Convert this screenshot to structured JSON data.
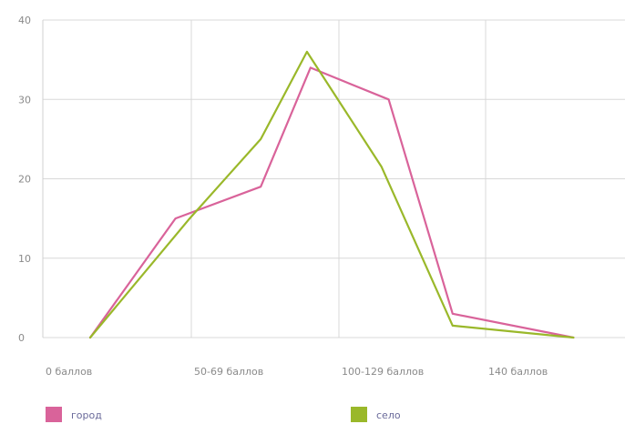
{
  "chart_data": {
    "type": "line",
    "title": "",
    "xlabel": "",
    "ylabel": "",
    "ylim": [
      0,
      40
    ],
    "yticks": [
      "0",
      "10",
      "20",
      "30",
      "40"
    ],
    "x_tick_labels": [
      "0 баллов",
      "50-69 баллов",
      "100-129 баллов",
      "140 баллов"
    ],
    "grid": true,
    "legend_position": "bottom",
    "series": [
      {
        "name": "город",
        "color": "#d9639a",
        "points": [
          [
            0,
            0
          ],
          [
            1.2,
            15
          ],
          [
            2.4,
            19
          ],
          [
            3.1,
            34
          ],
          [
            4.2,
            30
          ],
          [
            5.1,
            3
          ],
          [
            6.8,
            0
          ]
        ]
      },
      {
        "name": "село",
        "color": "#9ab82a",
        "points": [
          [
            0,
            0
          ],
          [
            1.4,
            15
          ],
          [
            2.4,
            25
          ],
          [
            3.05,
            36
          ],
          [
            4.1,
            21.5
          ],
          [
            5.1,
            1.5
          ],
          [
            6.8,
            0
          ]
        ]
      }
    ]
  }
}
